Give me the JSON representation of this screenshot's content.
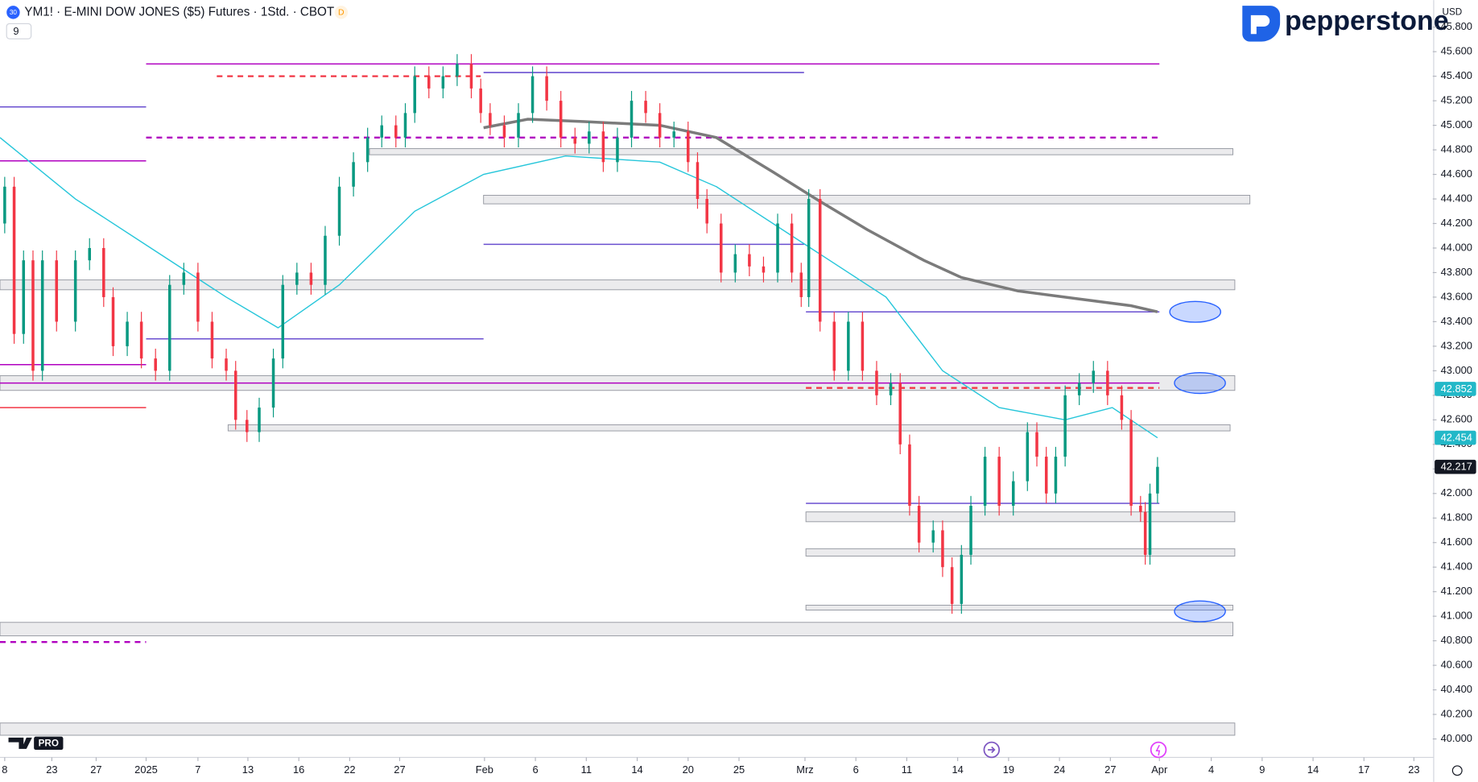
{
  "header": {
    "badge": "30",
    "title": "YM1! · E-MINI DOW JONES ($5) Futures · 1Std. · CBOT",
    "flag": "D",
    "interval_box": "9",
    "currency": "USD",
    "logo": "pepperstone",
    "tv_badge": "PRO"
  },
  "chart_data": {
    "type": "candlestick",
    "up_color": "#089981",
    "down_color": "#f23645",
    "xlim": [
      0,
      1520
    ],
    "ylim": [
      39850,
      46020
    ],
    "xticks": [
      {
        "value": 5,
        "label": "8"
      },
      {
        "value": 55,
        "label": "23"
      },
      {
        "value": 102,
        "label": "27"
      },
      {
        "value": 155,
        "label": "2025"
      },
      {
        "value": 210,
        "label": "7"
      },
      {
        "value": 263,
        "label": "13"
      },
      {
        "value": 317,
        "label": "16"
      },
      {
        "value": 371,
        "label": "22"
      },
      {
        "value": 424,
        "label": "27"
      },
      {
        "value": 514,
        "label": "Feb"
      },
      {
        "value": 568,
        "label": "6"
      },
      {
        "value": 622,
        "label": "11"
      },
      {
        "value": 676,
        "label": "14"
      },
      {
        "value": 730,
        "label": "20"
      },
      {
        "value": 784,
        "label": "25"
      },
      {
        "value": 854,
        "label": "Mrz"
      },
      {
        "value": 908,
        "label": "6"
      },
      {
        "value": 962,
        "label": "11"
      },
      {
        "value": 1016,
        "label": "14"
      },
      {
        "value": 1070,
        "label": "19"
      },
      {
        "value": 1124,
        "label": "24"
      },
      {
        "value": 1178,
        "label": "27"
      },
      {
        "value": 1230,
        "label": "Apr"
      },
      {
        "value": 1285,
        "label": "4"
      },
      {
        "value": 1339,
        "label": "9"
      },
      {
        "value": 1393,
        "label": "14"
      },
      {
        "value": 1447,
        "label": "17"
      },
      {
        "value": 1500,
        "label": "23"
      }
    ],
    "yticks": [
      {
        "value": 40000,
        "label": "40.000"
      },
      {
        "value": 40200,
        "label": "40.200"
      },
      {
        "value": 40400,
        "label": "40.400"
      },
      {
        "value": 40600,
        "label": "40.600"
      },
      {
        "value": 40800,
        "label": "40.800"
      },
      {
        "value": 41000,
        "label": "41.000"
      },
      {
        "value": 41200,
        "label": "41.200"
      },
      {
        "value": 41400,
        "label": "41.400"
      },
      {
        "value": 41600,
        "label": "41.600"
      },
      {
        "value": 41800,
        "label": "41.800"
      },
      {
        "value": 42000,
        "label": "42.000"
      },
      {
        "value": 42200,
        "label": "42.200"
      },
      {
        "value": 42400,
        "label": "42.400"
      },
      {
        "value": 42600,
        "label": "42.600"
      },
      {
        "value": 42800,
        "label": "42.800"
      },
      {
        "value": 43000,
        "label": "43.000"
      },
      {
        "value": 43200,
        "label": "43.200"
      },
      {
        "value": 43400,
        "label": "43.400"
      },
      {
        "value": 43600,
        "label": "43.600"
      },
      {
        "value": 43800,
        "label": "43.800"
      },
      {
        "value": 44000,
        "label": "44.000"
      },
      {
        "value": 44200,
        "label": "44.200"
      },
      {
        "value": 44400,
        "label": "44.400"
      },
      {
        "value": 44600,
        "label": "44.600"
      },
      {
        "value": 44800,
        "label": "44.800"
      },
      {
        "value": 45000,
        "label": "45.000"
      },
      {
        "value": 45200,
        "label": "45.200"
      },
      {
        "value": 45400,
        "label": "45.400"
      },
      {
        "value": 45600,
        "label": "45.600"
      },
      {
        "value": 45800,
        "label": "45.800"
      }
    ],
    "x": [
      5,
      15,
      25,
      35,
      45,
      60,
      80,
      95,
      110,
      120,
      135,
      150,
      165,
      180,
      195,
      210,
      225,
      240,
      250,
      262,
      275,
      290,
      300,
      315,
      330,
      345,
      360,
      375,
      390,
      405,
      420,
      430,
      440,
      455,
      470,
      485,
      500,
      510,
      520,
      535,
      550,
      565,
      580,
      595,
      610,
      625,
      640,
      655,
      670,
      685,
      700,
      715,
      730,
      740,
      750,
      765,
      780,
      795,
      810,
      825,
      840,
      850,
      858,
      870,
      885,
      900,
      915,
      930,
      945,
      955,
      965,
      975,
      990,
      1000,
      1010,
      1020,
      1030,
      1045,
      1060,
      1075,
      1090,
      1100,
      1110,
      1120,
      1130,
      1145,
      1160,
      1175,
      1190,
      1200,
      1210,
      1215,
      1220,
      1228
    ],
    "open": [
      44200,
      44500,
      43300,
      43900,
      43000,
      43900,
      43400,
      43900,
      44000,
      43600,
      43200,
      43400,
      43100,
      43000,
      43700,
      43800,
      43400,
      43100,
      43000,
      42600,
      42500,
      42700,
      43100,
      43700,
      43800,
      43700,
      44100,
      44500,
      44700,
      44900,
      45000,
      44900,
      45100,
      45400,
      45300,
      45400,
      45500,
      45300,
      45100,
      45000,
      44900,
      45100,
      45400,
      45200,
      44900,
      44850,
      44950,
      44700,
      44900,
      45200,
      45100,
      44900,
      44950,
      44700,
      44400,
      44200,
      43800,
      43950,
      43850,
      43800,
      44200,
      43800,
      43600,
      44400,
      43400,
      43000,
      43400,
      43000,
      42800,
      42900,
      42400,
      41900,
      41600,
      41700,
      41400,
      41100,
      41500,
      41900,
      42300,
      41900,
      42100,
      42500,
      42300,
      42000,
      42300,
      42800,
      42900,
      43000,
      42800,
      42600,
      41900,
      41850,
      41500,
      42000
    ],
    "high": [
      44580,
      44580,
      43980,
      43980,
      43980,
      43980,
      43980,
      44080,
      44080,
      43680,
      43480,
      43480,
      43180,
      43780,
      43880,
      43880,
      43480,
      43180,
      43080,
      42680,
      42780,
      43180,
      43780,
      43880,
      43880,
      44180,
      44580,
      44780,
      44980,
      45080,
      45080,
      45180,
      45480,
      45480,
      45480,
      45580,
      45580,
      45380,
      45180,
      45080,
      45180,
      45480,
      45480,
      45280,
      44980,
      45030,
      45030,
      44980,
      45280,
      45280,
      45180,
      45030,
      45030,
      44780,
      44480,
      44280,
      44030,
      44030,
      43930,
      44280,
      44280,
      43880,
      44480,
      44480,
      43480,
      43480,
      43480,
      43080,
      42980,
      42980,
      42480,
      41980,
      41780,
      41780,
      41480,
      41580,
      41980,
      42380,
      42380,
      42180,
      42580,
      42580,
      42380,
      42380,
      42880,
      42980,
      43080,
      43080,
      42880,
      42680,
      41980,
      41930,
      42080,
      42297
    ],
    "low": [
      44120,
      43220,
      43220,
      42920,
      42920,
      43320,
      43320,
      43820,
      43520,
      43120,
      43120,
      43020,
      42920,
      42920,
      43620,
      43320,
      43020,
      42920,
      42520,
      42420,
      42420,
      42620,
      43020,
      43620,
      43620,
      43620,
      44020,
      44420,
      44620,
      44820,
      44820,
      44820,
      45020,
      45220,
      45220,
      45320,
      45220,
      45020,
      44920,
      44820,
      44820,
      45020,
      45120,
      44820,
      44770,
      44770,
      44620,
      44620,
      44820,
      45020,
      44820,
      44820,
      44620,
      44320,
      44120,
      43720,
      43720,
      43770,
      43720,
      43720,
      43720,
      43520,
      43520,
      43320,
      42920,
      42920,
      42920,
      42720,
      42720,
      42320,
      41820,
      41520,
      41520,
      41320,
      41020,
      41020,
      41420,
      41820,
      41820,
      41820,
      42020,
      42220,
      41920,
      41920,
      42220,
      42720,
      42820,
      42720,
      42520,
      41820,
      41770,
      41420,
      41420,
      41920
    ],
    "close": [
      44500,
      43300,
      43900,
      43000,
      43900,
      43400,
      43900,
      44000,
      43600,
      43200,
      43400,
      43100,
      43000,
      43700,
      43800,
      43400,
      43100,
      43000,
      42600,
      42500,
      42700,
      43100,
      43700,
      43800,
      43700,
      44100,
      44500,
      44700,
      44900,
      45000,
      44900,
      45100,
      45400,
      45300,
      45400,
      45500,
      45300,
      45100,
      45000,
      44900,
      45100,
      45400,
      45200,
      44900,
      44850,
      44950,
      44700,
      44900,
      45200,
      45100,
      44900,
      44950,
      44700,
      44400,
      44200,
      43800,
      43950,
      43850,
      43800,
      44200,
      43800,
      43600,
      44400,
      43400,
      43000,
      43400,
      43000,
      42800,
      42900,
      42400,
      41900,
      41600,
      41700,
      41400,
      41100,
      41500,
      41900,
      42300,
      41900,
      42100,
      42500,
      42300,
      42000,
      42300,
      42800,
      42900,
      43000,
      42800,
      42600,
      41900,
      41850,
      41500,
      42000,
      42217
    ],
    "moving_averages": [
      {
        "color": "#7b7b7b",
        "x": [
          513,
          560,
          620,
          700,
          760,
          820,
          870,
          920,
          980,
          1020,
          1080,
          1140,
          1200,
          1228
        ],
        "values": [
          44980,
          45050,
          45030,
          45000,
          44900,
          44620,
          44380,
          44150,
          43900,
          43760,
          43650,
          43590,
          43530,
          43480
        ]
      },
      {
        "color": "#26c6da",
        "x": [
          0,
          80,
          160,
          240,
          295,
          360,
          440,
          513,
          600,
          700,
          760,
          860,
          940,
          1000,
          1060,
          1130,
          1180,
          1228
        ],
        "values": [
          44900,
          44400,
          44000,
          43600,
          43350,
          43700,
          44300,
          44600,
          44750,
          44700,
          44500,
          44000,
          43600,
          43000,
          42700,
          42600,
          42700,
          42454
        ]
      }
    ],
    "levels": [
      {
        "price": 45500,
        "start": 155,
        "end": 1230,
        "color": "#b000c0",
        "dash": false
      },
      {
        "price": 45430,
        "start": 513,
        "end": 853,
        "color": "#6a4fd0",
        "dash": false
      },
      {
        "price": 45400,
        "start": 230,
        "end": 510,
        "color": "#f23645",
        "dash": true
      },
      {
        "price": 44900,
        "start": 155,
        "end": 1230,
        "color": "#b000c0",
        "dash": true
      },
      {
        "price": 44030,
        "start": 513,
        "end": 853,
        "color": "#6a4fd0",
        "dash": false
      },
      {
        "price": 43480,
        "start": 855,
        "end": 1230,
        "color": "#6a4fd0",
        "dash": false
      },
      {
        "price": 43260,
        "start": 155,
        "end": 513,
        "color": "#6a4fd0",
        "dash": false
      },
      {
        "price": 42900,
        "start": 0,
        "end": 1230,
        "color": "#b000c0",
        "dash": false
      },
      {
        "price": 42860,
        "start": 855,
        "end": 1230,
        "color": "#f23645",
        "dash": true
      },
      {
        "price": 41920,
        "start": 855,
        "end": 1230,
        "color": "#6a4fd0",
        "dash": false
      },
      {
        "price": 45150,
        "start": 0,
        "end": 155,
        "color": "#6a4fd0",
        "dash": false
      },
      {
        "price": 44710,
        "start": 0,
        "end": 155,
        "color": "#b000c0",
        "dash": false
      },
      {
        "price": 43050,
        "start": 0,
        "end": 155,
        "color": "#b000c0",
        "dash": false
      },
      {
        "price": 42700,
        "start": 0,
        "end": 155,
        "color": "#f23645",
        "dash": false
      },
      {
        "price": 40790,
        "start": 0,
        "end": 155,
        "color": "#b000c0",
        "dash": true
      }
    ],
    "zones": [
      {
        "low": 44760,
        "high": 44810,
        "start": 392,
        "end": 1308
      },
      {
        "low": 44360,
        "high": 44430,
        "start": 513,
        "end": 1326
      },
      {
        "low": 43660,
        "high": 43740,
        "start": 0,
        "end": 1310
      },
      {
        "low": 42840,
        "high": 42960,
        "start": 0,
        "end": 1310
      },
      {
        "low": 42510,
        "high": 42560,
        "start": 242,
        "end": 1305
      },
      {
        "low": 41770,
        "high": 41850,
        "start": 855,
        "end": 1310
      },
      {
        "low": 41490,
        "high": 41550,
        "start": 855,
        "end": 1310
      },
      {
        "low": 41050,
        "high": 41090,
        "start": 855,
        "end": 1308
      },
      {
        "low": 40840,
        "high": 40950,
        "start": 0,
        "end": 1308
      },
      {
        "low": 40030,
        "high": 40130,
        "start": 0,
        "end": 1310
      }
    ],
    "targets": [
      {
        "x": 1268,
        "price": 43480
      },
      {
        "x": 1273,
        "price": 42900
      },
      {
        "x": 1273,
        "price": 41040
      }
    ],
    "price_labels": [
      {
        "value": 42852,
        "label": "42.852",
        "color": "#22b8c8"
      },
      {
        "value": 42454,
        "label": "42.454",
        "color": "#22b8c8"
      },
      {
        "value": 42217,
        "label": "42.217",
        "color": "#131722"
      }
    ]
  }
}
